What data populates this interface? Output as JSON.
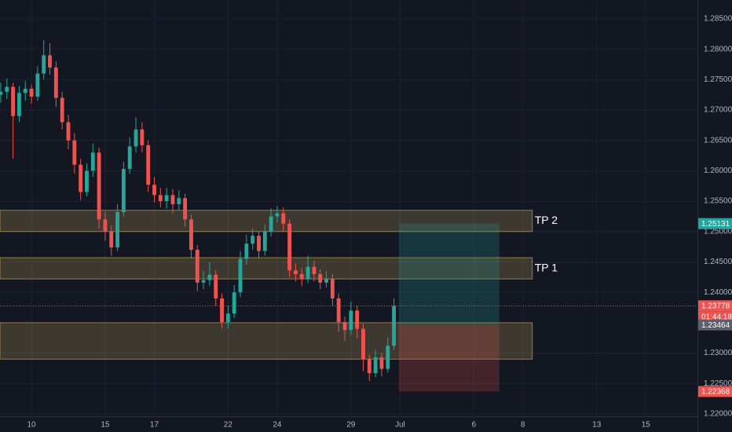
{
  "chart_data": {
    "type": "candlestick",
    "up_color": "#26a69a",
    "down_color": "#ef5350",
    "x": [
      -1.25,
      -1.0,
      -0.75,
      -0.5,
      -0.25,
      0,
      0.25,
      0.5,
      0.75,
      1.0,
      1.25,
      1.5,
      1.75,
      2.0,
      2.25,
      2.5,
      2.75,
      3.0,
      3.25,
      3.5,
      3.75,
      4.0,
      4.25,
      4.5,
      4.75,
      5.0,
      5.25,
      5.5,
      5.75,
      6.0,
      6.25,
      6.5,
      6.75,
      7.0,
      7.25,
      7.5,
      7.75,
      8.0,
      8.25,
      8.5,
      8.75,
      9.0,
      9.25,
      9.5,
      9.75,
      10.0,
      10.25,
      10.5,
      10.75,
      11.0,
      11.25,
      11.5,
      11.75,
      12.0,
      12.25,
      12.5,
      12.75,
      13.0,
      13.25,
      13.5,
      13.75,
      14.0,
      14.25,
      14.5,
      14.75
    ],
    "open": [
      1.2725,
      1.273,
      1.2738,
      1.269,
      1.2728,
      1.2735,
      1.2722,
      1.276,
      1.279,
      1.277,
      1.272,
      1.268,
      1.265,
      1.261,
      1.2565,
      1.26,
      1.263,
      1.252,
      1.25,
      1.2474,
      1.2532,
      1.2603,
      1.264,
      1.2668,
      1.2642,
      1.2577,
      1.256,
      1.255,
      1.256,
      1.2545,
      1.2555,
      1.252,
      1.247,
      1.2416,
      1.242,
      1.2429,
      1.239,
      1.2351,
      1.2365,
      1.24,
      1.2455,
      1.248,
      1.2493,
      1.2468,
      1.25,
      1.2525,
      1.253,
      1.2513,
      1.2436,
      1.243,
      1.2422,
      1.2442,
      1.243,
      1.2416,
      1.2422,
      1.239,
      1.2351,
      1.2338,
      1.237,
      1.234,
      1.229,
      1.2267,
      1.2293,
      1.2274,
      1.2312
    ],
    "high": [
      1.2745,
      1.2752,
      1.2745,
      1.274,
      1.2748,
      1.2742,
      1.2772,
      1.2815,
      1.281,
      1.278,
      1.273,
      1.2692,
      1.2662,
      1.262,
      1.2612,
      1.2645,
      1.2638,
      1.2532,
      1.251,
      1.2545,
      1.2615,
      1.2655,
      1.2688,
      1.268,
      1.265,
      1.259,
      1.2572,
      1.2572,
      1.257,
      1.2568,
      1.2562,
      1.2528,
      1.2478,
      1.2435,
      1.245,
      1.2436,
      1.2398,
      1.2378,
      1.2412,
      1.2468,
      1.2495,
      1.2505,
      1.25,
      1.2512,
      1.2538,
      1.2542,
      1.254,
      1.252,
      1.2448,
      1.244,
      1.246,
      1.2452,
      1.2438,
      1.2435,
      1.243,
      1.2398,
      1.236,
      1.2385,
      1.2378,
      1.2348,
      1.2298,
      1.2305,
      1.23,
      1.2325,
      1.239
    ],
    "low": [
      1.2712,
      1.2718,
      1.262,
      1.268,
      1.2715,
      1.271,
      1.2715,
      1.275,
      1.2758,
      1.2705,
      1.2668,
      1.2635,
      1.2595,
      1.2552,
      1.2558,
      1.259,
      1.2505,
      1.2485,
      1.246,
      1.2468,
      1.2525,
      1.2595,
      1.263,
      1.263,
      1.2565,
      1.2548,
      1.254,
      1.2538,
      1.253,
      1.2535,
      1.2508,
      1.2455,
      1.2402,
      1.2405,
      1.241,
      1.2378,
      1.2341,
      1.234,
      1.2358,
      1.2392,
      1.2445,
      1.247,
      1.2455,
      1.246,
      1.2492,
      1.2515,
      1.25,
      1.2425,
      1.2418,
      1.241,
      1.2415,
      1.2418,
      1.2405,
      1.2408,
      1.2378,
      1.2335,
      1.232,
      1.233,
      1.2325,
      1.227,
      1.2254,
      1.226,
      1.2262,
      1.2268,
      1.2305
    ],
    "close": [
      1.273,
      1.2738,
      1.269,
      1.2728,
      1.2735,
      1.2722,
      1.276,
      1.279,
      1.277,
      1.272,
      1.268,
      1.265,
      1.261,
      1.2565,
      1.26,
      1.263,
      1.252,
      1.25,
      1.2474,
      1.2532,
      1.2603,
      1.264,
      1.2668,
      1.2642,
      1.2577,
      1.256,
      1.255,
      1.256,
      1.2545,
      1.2555,
      1.252,
      1.247,
      1.2416,
      1.242,
      1.2429,
      1.239,
      1.2351,
      1.2365,
      1.24,
      1.2455,
      1.248,
      1.2493,
      1.2468,
      1.25,
      1.2525,
      1.253,
      1.2513,
      1.2436,
      1.243,
      1.2422,
      1.2442,
      1.243,
      1.2416,
      1.2422,
      1.239,
      1.2351,
      1.2338,
      1.237,
      1.234,
      1.229,
      1.2267,
      1.2293,
      1.2274,
      1.2312,
      1.23778
    ],
    "xlim": [
      -1.28,
      27.1
    ],
    "xticks": [
      {
        "value": 0,
        "label": "10"
      },
      {
        "value": 3,
        "label": "15"
      },
      {
        "value": 5,
        "label": "17"
      },
      {
        "value": 8,
        "label": "22"
      },
      {
        "value": 10,
        "label": "24"
      },
      {
        "value": 13,
        "label": "29"
      },
      {
        "value": 15,
        "label": "Jul"
      },
      {
        "value": 18,
        "label": "6"
      },
      {
        "value": 20,
        "label": "8"
      },
      {
        "value": 23,
        "label": "13"
      },
      {
        "value": 25,
        "label": "15"
      }
    ],
    "ylim": [
      1.2196,
      1.2881
    ],
    "yticks": [
      {
        "value": 1.22,
        "label": "1.22000"
      },
      {
        "value": 1.225,
        "label": "1.22500"
      },
      {
        "value": 1.23,
        "label": "1.23000"
      },
      {
        "value": 1.24,
        "label": "1.24000"
      },
      {
        "value": 1.245,
        "label": "1.24500"
      },
      {
        "value": 1.25,
        "label": "1.25000"
      },
      {
        "value": 1.255,
        "label": "1.25500"
      },
      {
        "value": 1.26,
        "label": "1.26000"
      },
      {
        "value": 1.265,
        "label": "1.26500"
      },
      {
        "value": 1.27,
        "label": "1.27000"
      },
      {
        "value": 1.275,
        "label": "1.27500"
      },
      {
        "value": 1.28,
        "label": "1.28000"
      },
      {
        "value": 1.285,
        "label": "1.28500"
      }
    ],
    "grid": true,
    "zones": [
      {
        "y": [
          1.25,
          1.2535
        ],
        "x": [
          -1.28,
          20.38
        ],
        "label": "TP 2"
      },
      {
        "y": [
          1.2422,
          1.2457
        ],
        "x": [
          -1.28,
          20.38
        ],
        "label": "TP 1"
      },
      {
        "y": [
          1.229,
          1.235
        ],
        "x": [
          -1.28,
          20.38
        ]
      }
    ],
    "position": {
      "x": [
        14.95,
        19.04
      ],
      "target": 1.25131,
      "entry": 1.23464,
      "stop": 1.22368
    },
    "last_price": 1.23778,
    "countdown": "01:44:18"
  }
}
